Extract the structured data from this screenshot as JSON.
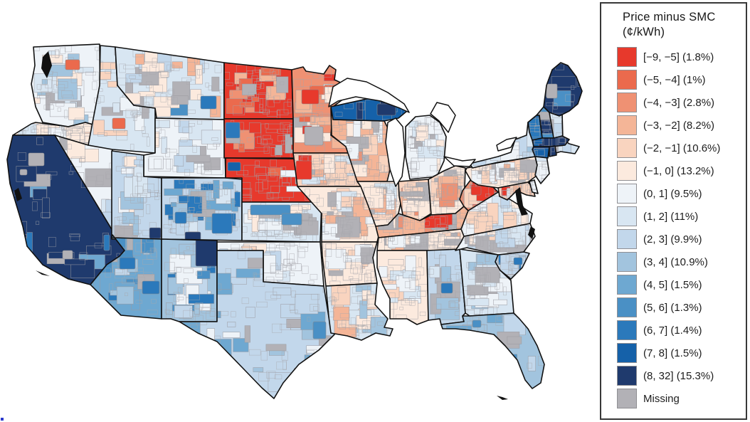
{
  "legend": {
    "title_line1": "Price minus SMC",
    "title_line2": "(¢/kWh)",
    "entries": [
      {
        "range": "[−9, −5]",
        "share": "(1.8%)",
        "color": "#e7392c"
      },
      {
        "range": "(−5, −4]",
        "share": "(1%)",
        "color": "#eb6a4d"
      },
      {
        "range": "(−4, −3]",
        "share": "(2.8%)",
        "color": "#ef9173"
      },
      {
        "range": "(−3, −2]",
        "share": "(8.2%)",
        "color": "#f4b597"
      },
      {
        "range": "(−2, −1]",
        "share": "(10.6%)",
        "color": "#f9d4bf"
      },
      {
        "range": "(−1, 0]",
        "share": "(13.2%)",
        "color": "#fceade"
      },
      {
        "range": "(0, 1]",
        "share": "(9.5%)",
        "color": "#eef3f8"
      },
      {
        "range": "(1, 2]",
        "share": "(11%)",
        "color": "#d8e6f2"
      },
      {
        "range": "(2, 3]",
        "share": "(9.9%)",
        "color": "#c2d7eb"
      },
      {
        "range": "(3, 4]",
        "share": "(10.9%)",
        "color": "#a2c4de"
      },
      {
        "range": "(4, 5]",
        "share": "(1.5%)",
        "color": "#6ea8d1"
      },
      {
        "range": "(5, 6]",
        "share": "(1.3%)",
        "color": "#4a90c5"
      },
      {
        "range": "(6, 7]",
        "share": "(1.4%)",
        "color": "#2b79bb"
      },
      {
        "range": "(7, 8]",
        "share": "(1.5%)",
        "color": "#1561a9"
      },
      {
        "range": "(8, 32]",
        "share": "(15.3%)",
        "color": "#1f3a6d"
      },
      {
        "range": "Missing",
        "share": "",
        "color": "#b2b1b6"
      }
    ]
  },
  "map": {
    "description": "US utility service territories colored by price minus social marginal cost bins",
    "states": [
      {
        "id": "WA",
        "name": "Washington",
        "bin": 7,
        "palette": [
          6,
          8,
          16,
          10,
          7,
          7,
          6
        ],
        "tex": 26,
        "spots": [
          [
            2,
            92,
            84,
            20,
            14
          ]
        ]
      },
      {
        "id": "OR",
        "name": "Oregon",
        "bin": 6,
        "palette": [
          7,
          8,
          16,
          5,
          6,
          6
        ],
        "tex": 26,
        "spots": []
      },
      {
        "id": "CA",
        "name": "California",
        "bin": 15,
        "palette": [
          16,
          13,
          15,
          15,
          15,
          11
        ],
        "tex": 18,
        "spots": [
          [
            16,
            40,
            215,
            22,
            18
          ],
          [
            16,
            88,
            352,
            14,
            12
          ],
          [
            13,
            146,
            330,
            8,
            22
          ],
          [
            16,
            28,
            238,
            10,
            8
          ]
        ]
      },
      {
        "id": "NV",
        "name": "Nevada",
        "bin": 7,
        "palette": [
          6,
          8,
          9,
          16,
          7,
          7
        ],
        "tex": 14,
        "spots": [
          [
            9,
            143,
            298,
            14,
            20
          ]
        ]
      },
      {
        "id": "ID",
        "name": "Idaho",
        "bin": 8,
        "palette": [
          16,
          7,
          5,
          8,
          8,
          9
        ],
        "tex": 20,
        "spots": [
          [
            2,
            158,
            166,
            18,
            15
          ]
        ]
      },
      {
        "id": "MT",
        "name": "Montana",
        "bin": 8,
        "palette": [
          16,
          16,
          9,
          7,
          6,
          12,
          4
        ],
        "tex": 30,
        "spots": [
          [
            13,
            282,
            135,
            22,
            18
          ]
        ]
      },
      {
        "id": "WY",
        "name": "Wyoming",
        "bin": 7,
        "palette": [
          8,
          6,
          16,
          9,
          7,
          7
        ],
        "tex": 18,
        "spots": []
      },
      {
        "id": "UT",
        "name": "Utah",
        "bin": 9,
        "palette": [
          8,
          10,
          16,
          6,
          9,
          7
        ],
        "tex": 20,
        "spots": [
          [
            15,
            210,
            320,
            16,
            15
          ]
        ]
      },
      {
        "id": "CO",
        "name": "Colorado",
        "bin": 9,
        "palette": [
          13,
          11,
          8,
          16,
          10,
          9
        ],
        "tex": 26,
        "spots": [
          [
            13,
            246,
            298,
            16,
            16
          ],
          [
            13,
            298,
            300,
            28,
            28
          ],
          [
            15,
            260,
            326,
            22,
            12
          ]
        ]
      },
      {
        "id": "AZ",
        "name": "Arizona",
        "bin": 11,
        "palette": [
          12,
          13,
          10,
          16,
          9,
          11
        ],
        "tex": 20,
        "spots": [
          [
            13,
            168,
            362,
            22,
            16
          ],
          [
            13,
            200,
            395,
            24,
            18
          ]
        ]
      },
      {
        "id": "NM",
        "name": "New Mexico",
        "bin": 10,
        "palette": [
          13,
          9,
          7,
          12,
          10,
          10
        ],
        "tex": 20,
        "spots": [
          [
            15,
            275,
            330,
            32,
            44
          ]
        ]
      },
      {
        "id": "ND",
        "name": "North Dakota",
        "bin": 1,
        "palette": [
          3,
          2,
          4,
          16,
          1,
          1
        ],
        "tex": 22,
        "spots": []
      },
      {
        "id": "SD",
        "name": "South Dakota",
        "bin": 1,
        "palette": [
          3,
          16,
          4,
          2,
          1,
          1
        ],
        "tex": 24,
        "spots": [
          [
            13,
            317,
            172,
            20,
            22
          ]
        ]
      },
      {
        "id": "NE",
        "name": "Nebraska",
        "bin": 1,
        "palette": [
          3,
          16,
          2,
          7,
          1,
          1
        ],
        "tex": 26,
        "spots": [
          [
            14,
            320,
            228,
            18,
            12
          ]
        ]
      },
      {
        "id": "KS",
        "name": "Kansas",
        "bin": 8,
        "palette": [
          7,
          9,
          16,
          6,
          8,
          8
        ],
        "tex": 22,
        "spots": [
          [
            12,
            352,
            288,
            56,
            14
          ],
          [
            12,
            396,
            300,
            28,
            16
          ]
        ]
      },
      {
        "id": "OK",
        "name": "Oklahoma",
        "bin": 7,
        "palette": [
          6,
          8,
          5,
          9,
          7,
          7
        ],
        "tex": 20,
        "spots": []
      },
      {
        "id": "TX",
        "name": "Texas",
        "bin": 9,
        "palette": [
          10,
          8,
          11,
          7,
          16,
          9,
          9
        ],
        "tex": 45,
        "spots": [
          [
            12,
            440,
            452,
            18,
            24
          ]
        ]
      },
      {
        "id": "MN",
        "name": "Minnesota",
        "bin": 3,
        "palette": [
          1,
          16,
          2,
          4,
          6,
          3
        ],
        "tex": 30,
        "spots": [
          [
            16,
            428,
            178,
            26,
            26
          ],
          [
            1,
            424,
            126,
            24,
            20
          ]
        ]
      },
      {
        "id": "IA",
        "name": "Iowa",
        "bin": 5,
        "palette": [
          1,
          6,
          4,
          16,
          8,
          5
        ],
        "tex": 22,
        "spots": [
          [
            1,
            416,
            226,
            22,
            26
          ]
        ]
      },
      {
        "id": "MO",
        "name": "Missouri",
        "bin": 6,
        "palette": [
          5,
          7,
          16,
          4,
          8,
          6
        ],
        "tex": 28,
        "spots": []
      },
      {
        "id": "AR",
        "name": "Arkansas",
        "bin": 6,
        "palette": [
          7,
          5,
          16,
          8,
          6
        ],
        "tex": 18,
        "spots": []
      },
      {
        "id": "LA",
        "name": "Louisiana",
        "bin": 8,
        "palette": [
          5,
          9,
          6,
          10,
          4,
          8
        ],
        "tex": 18,
        "spots": []
      },
      {
        "id": "WI",
        "name": "Wisconsin",
        "bin": 4,
        "palette": [
          5,
          6,
          16,
          3,
          7,
          4
        ],
        "tex": 24,
        "spots": []
      },
      {
        "id": "MIU",
        "name": "Michigan Upper Peninsula",
        "bin": 14,
        "palette": [
          15,
          14
        ],
        "tex": 5,
        "spots": [
          [
            15,
            530,
            146,
            26,
            16
          ]
        ]
      },
      {
        "id": "MIL",
        "name": "Michigan",
        "bin": 7,
        "palette": [
          6,
          16,
          8,
          7,
          7
        ],
        "tex": 18,
        "spots": []
      },
      {
        "id": "IL",
        "name": "Illinois",
        "bin": 6,
        "palette": [
          7,
          5,
          16,
          8,
          4,
          6
        ],
        "tex": 20,
        "spots": []
      },
      {
        "id": "IN",
        "name": "Indiana",
        "bin": 5,
        "palette": [
          4,
          6,
          16,
          3,
          5
        ],
        "tex": 14,
        "spots": []
      },
      {
        "id": "OH",
        "name": "Ohio",
        "bin": 6,
        "palette": [
          4,
          5,
          16,
          3,
          6
        ],
        "tex": 18,
        "spots": []
      },
      {
        "id": "KY",
        "name": "Kentucky",
        "bin": 4,
        "palette": [
          16,
          3,
          5,
          6,
          1,
          4,
          16
        ],
        "tex": 22,
        "spots": []
      },
      {
        "id": "TN",
        "name": "Tennessee",
        "bin": 6,
        "palette": [
          7,
          5,
          16,
          4,
          6,
          6
        ],
        "tex": 22,
        "spots": []
      },
      {
        "id": "MS",
        "name": "Mississippi",
        "bin": 6,
        "palette": [
          7,
          8,
          5,
          6
        ],
        "tex": 14,
        "spots": []
      },
      {
        "id": "AL",
        "name": "Alabama",
        "bin": 9,
        "palette": [
          8,
          10,
          16,
          9
        ],
        "tex": 10,
        "spots": [
          [
            13,
            620,
            398,
            16,
            14
          ]
        ]
      },
      {
        "id": "GA",
        "name": "Georgia",
        "bin": 8,
        "palette": [
          9,
          7,
          16,
          10,
          8
        ],
        "tex": 18,
        "spots": []
      },
      {
        "id": "FL",
        "name": "Florida",
        "bin": 10,
        "palette": [
          11,
          9,
          8,
          16,
          12,
          10
        ],
        "tex": 20,
        "spots": [
          [
            12,
            700,
            495,
            18,
            22
          ],
          [
            12,
            664,
            450,
            12,
            10
          ]
        ]
      },
      {
        "id": "SC",
        "name": "South Carolina",
        "bin": 9,
        "palette": [
          8,
          13,
          10,
          9
        ],
        "tex": 8,
        "spots": [
          [
            13,
            722,
            362,
            12,
            10
          ]
        ]
      },
      {
        "id": "NC",
        "name": "North Carolina",
        "bin": 7,
        "palette": [
          6,
          8,
          9,
          16,
          5,
          7
        ],
        "tex": 22,
        "spots": []
      },
      {
        "id": "VA",
        "name": "Virginia",
        "bin": 7,
        "palette": [
          8,
          6,
          9,
          5,
          7
        ],
        "tex": 18,
        "spots": []
      },
      {
        "id": "WV",
        "name": "West Virginia",
        "bin": 3,
        "palette": [
          4,
          1,
          5,
          3
        ],
        "tex": 10,
        "spots": [
          [
            1,
            662,
            262,
            14,
            12
          ]
        ]
      },
      {
        "id": "PA",
        "name": "Pennsylvania",
        "bin": 6,
        "palette": [
          4,
          5,
          7,
          16,
          6
        ],
        "tex": 20,
        "spots": []
      },
      {
        "id": "NY",
        "name": "New York",
        "bin": 8,
        "palette": [
          9,
          7,
          16,
          10,
          8
        ],
        "tex": 20,
        "spots": []
      },
      {
        "id": "NJ",
        "name": "New Jersey",
        "bin": 8,
        "palette": [
          7,
          9
        ],
        "tex": 4,
        "spots": []
      },
      {
        "id": "MD",
        "name": "Maryland",
        "bin": 5,
        "palette": [
          4,
          1,
          7,
          5
        ],
        "tex": 8,
        "spots": []
      },
      {
        "id": "DE",
        "name": "Delaware",
        "bin": 7,
        "palette": [
          7
        ],
        "tex": 2,
        "spots": []
      },
      {
        "id": "VT",
        "name": "Vermont",
        "bin": 14,
        "palette": [
          15,
          13
        ],
        "tex": 3,
        "spots": []
      },
      {
        "id": "NH",
        "name": "New Hampshire",
        "bin": 12,
        "palette": [
          10,
          15,
          16,
          12
        ],
        "tex": 4,
        "spots": []
      },
      {
        "id": "ME",
        "name": "Maine",
        "bin": 15,
        "palette": [
          16,
          12,
          15
        ],
        "tex": 5,
        "spots": [
          [
            16,
            768,
            118,
            15,
            20
          ]
        ]
      },
      {
        "id": "MA",
        "name": "Massachusetts",
        "bin": 15,
        "palette": [
          14,
          15
        ],
        "tex": 4,
        "spots": []
      },
      {
        "id": "CT",
        "name": "Connecticut",
        "bin": 15,
        "palette": [
          14
        ],
        "tex": 2,
        "spots": []
      },
      {
        "id": "RI",
        "name": "Rhode Island",
        "bin": 15,
        "palette": [
          15
        ],
        "tex": 1,
        "spots": []
      }
    ]
  }
}
